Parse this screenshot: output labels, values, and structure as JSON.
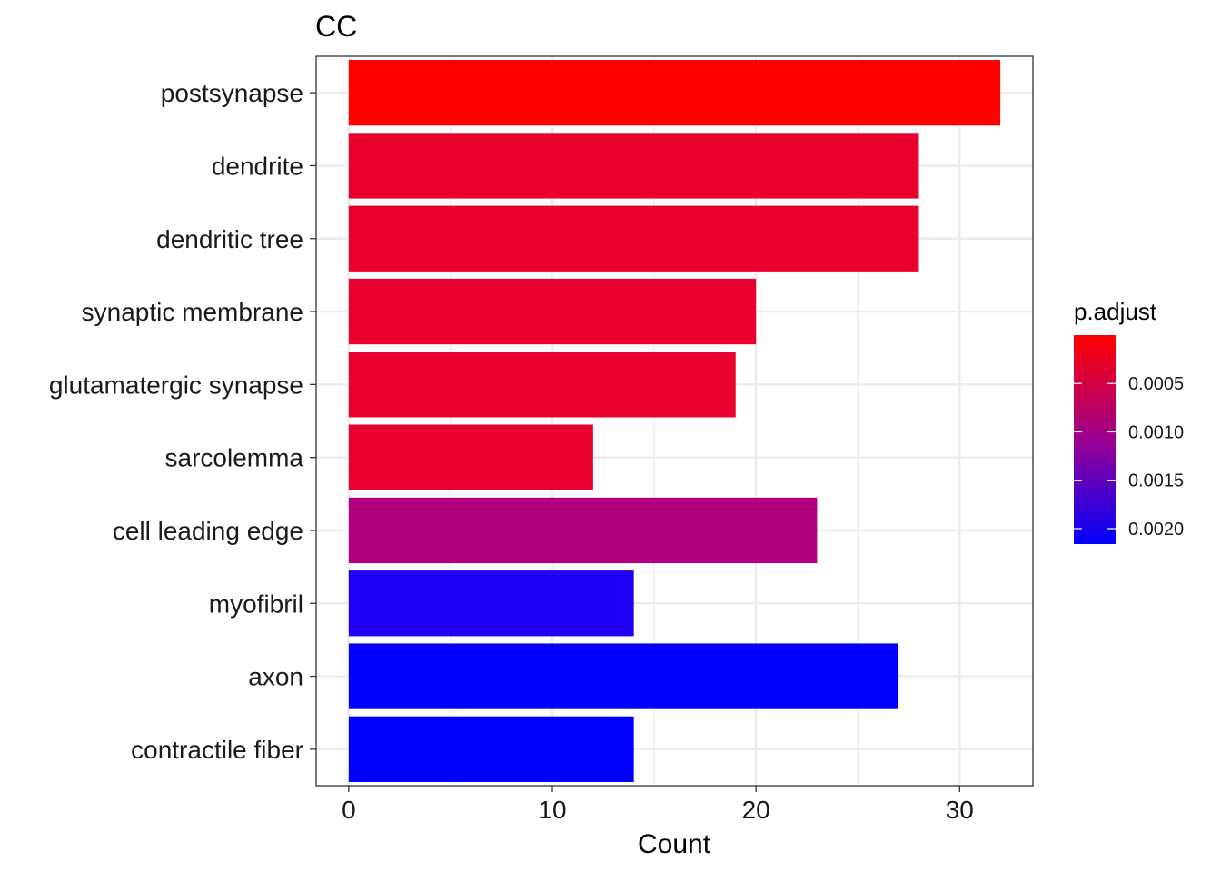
{
  "chart_data": {
    "type": "bar",
    "orientation": "horizontal",
    "title": "CC",
    "xlabel": "Count",
    "ylabel": "",
    "xlim": [
      -1.6,
      33.6
    ],
    "xticks": [
      0,
      10,
      20,
      30
    ],
    "grid": true,
    "legend_position": "right",
    "categories": [
      "postsynapse",
      "dendrite",
      "dendritic tree",
      "synaptic membrane",
      "glutamatergic synapse",
      "sarcolemma",
      "cell leading edge",
      "myofibril",
      "axon",
      "contractile fiber"
    ],
    "values": [
      32,
      28,
      28,
      20,
      19,
      12,
      23,
      14,
      27,
      14
    ],
    "p_adjust": [
      2e-05,
      0.00018,
      0.00018,
      0.00018,
      0.00018,
      0.00018,
      0.001,
      0.0019,
      0.0021,
      0.0021
    ],
    "colors": [
      "#ff0000",
      "#e8002f",
      "#e8002f",
      "#e8002f",
      "#e8002f",
      "#e8002f",
      "#b1007f",
      "#2000f2",
      "#0000ff",
      "#0000ff"
    ],
    "legend": {
      "title": "p.adjust",
      "gradient_top": "#ff0000",
      "gradient_mid": "#9c0090",
      "gradient_bottom": "#0000ff",
      "range": [
        0,
        0.00216
      ],
      "tick_values": [
        0.0005,
        0.001,
        0.0015,
        0.002
      ],
      "tick_labels": [
        "0.0005",
        "0.0010",
        "0.0015",
        "0.0020"
      ]
    }
  }
}
